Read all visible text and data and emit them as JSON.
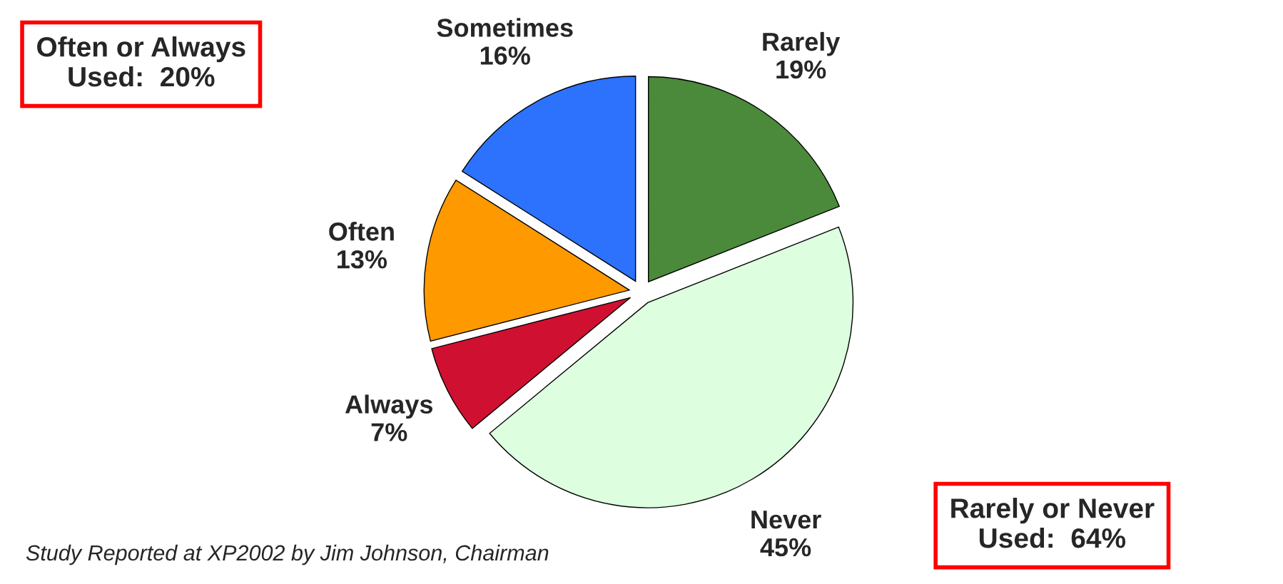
{
  "chart_data": {
    "type": "pie",
    "categories": [
      "Rarely",
      "Never",
      "Always",
      "Often",
      "Sometimes"
    ],
    "values": [
      19,
      45,
      7,
      13,
      16
    ],
    "value_labels": [
      "19%",
      "45%",
      "7%",
      "13%",
      "16%"
    ],
    "colors": [
      "#4a8a3a",
      "#ddfedf",
      "#d01030",
      "#ff9900",
      "#2c72fc"
    ],
    "legend": false,
    "annotations": [
      "Often or Always\nUsed:  20%",
      "Rarely or Never\nUsed:  64%",
      "Study Reported at XP2002 by Jim Johnson, Chairman"
    ]
  }
}
